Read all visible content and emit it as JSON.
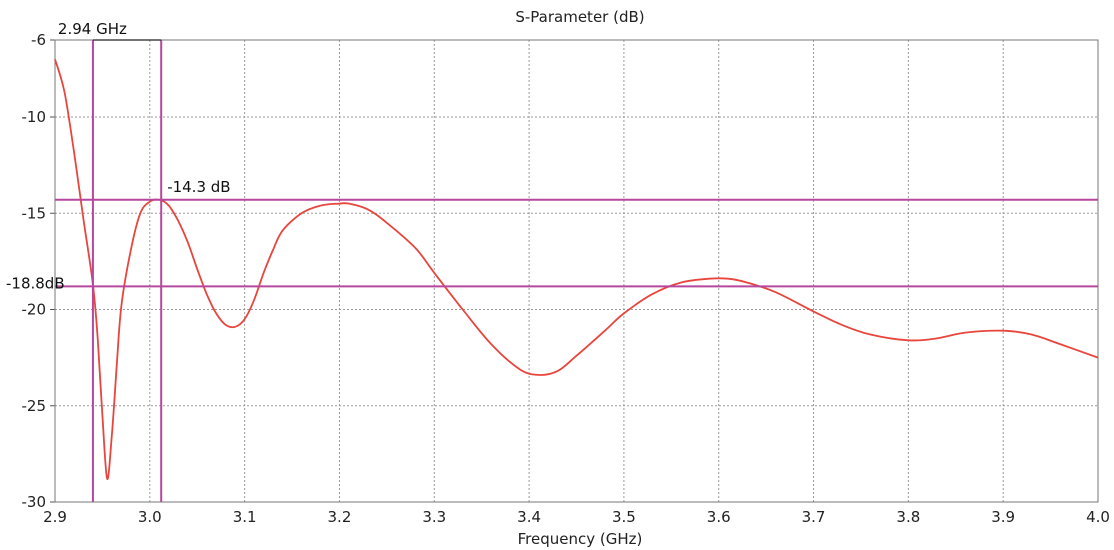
{
  "chart_data": {
    "type": "line",
    "title": "S-Parameter (dB)",
    "xlabel": "Frequency (GHz)",
    "ylabel": "",
    "xlim": [
      2.9,
      4.0
    ],
    "ylim": [
      -30,
      -6
    ],
    "x_ticks": [
      "2.9",
      "3.0",
      "3.1",
      "3.2",
      "3.3",
      "3.4",
      "3.5",
      "3.6",
      "3.7",
      "3.8",
      "3.9",
      "4.0"
    ],
    "y_ticks": [
      "-6",
      "-10",
      "-15",
      "-20",
      "-25",
      "-30"
    ],
    "grid": true,
    "series": [
      {
        "color": "#e8453c",
        "x": [
          2.9,
          2.91,
          2.92,
          2.93,
          2.94,
          2.945,
          2.95,
          2.955,
          2.96,
          2.965,
          2.97,
          2.98,
          2.99,
          3.0,
          3.01,
          3.02,
          3.03,
          3.04,
          3.05,
          3.06,
          3.07,
          3.08,
          3.09,
          3.1,
          3.11,
          3.12,
          3.13,
          3.14,
          3.16,
          3.18,
          3.2,
          3.21,
          3.23,
          3.25,
          3.28,
          3.3,
          3.33,
          3.36,
          3.39,
          3.41,
          3.43,
          3.45,
          3.48,
          3.5,
          3.53,
          3.56,
          3.59,
          3.61,
          3.63,
          3.66,
          3.7,
          3.73,
          3.76,
          3.8,
          3.83,
          3.86,
          3.9,
          3.93,
          3.96,
          4.0
        ],
        "y": [
          -7.0,
          -8.7,
          -11.8,
          -15.3,
          -18.7,
          -21.5,
          -25.5,
          -28.8,
          -26.5,
          -23.0,
          -19.8,
          -16.9,
          -15.0,
          -14.4,
          -14.3,
          -14.6,
          -15.4,
          -16.5,
          -17.9,
          -19.2,
          -20.2,
          -20.8,
          -20.9,
          -20.5,
          -19.5,
          -18.1,
          -16.9,
          -15.9,
          -15.0,
          -14.6,
          -14.5,
          -14.5,
          -14.8,
          -15.5,
          -16.8,
          -18.1,
          -20.0,
          -21.8,
          -23.1,
          -23.4,
          -23.2,
          -22.4,
          -21.1,
          -20.2,
          -19.2,
          -18.6,
          -18.4,
          -18.4,
          -18.6,
          -19.1,
          -20.1,
          -20.8,
          -21.3,
          -21.6,
          -21.5,
          -21.2,
          -21.1,
          -21.3,
          -21.8,
          -22.5
        ]
      }
    ],
    "markers": {
      "color": "#b5479e",
      "vertical": [
        {
          "x": 2.94,
          "label": "2.94 GHz"
        },
        {
          "x": 3.012,
          "label": ""
        }
      ],
      "horizontal": [
        {
          "y": -14.3,
          "label": "-14.3 dB"
        },
        {
          "y": -18.8,
          "label": "-18.8dB"
        }
      ]
    }
  }
}
